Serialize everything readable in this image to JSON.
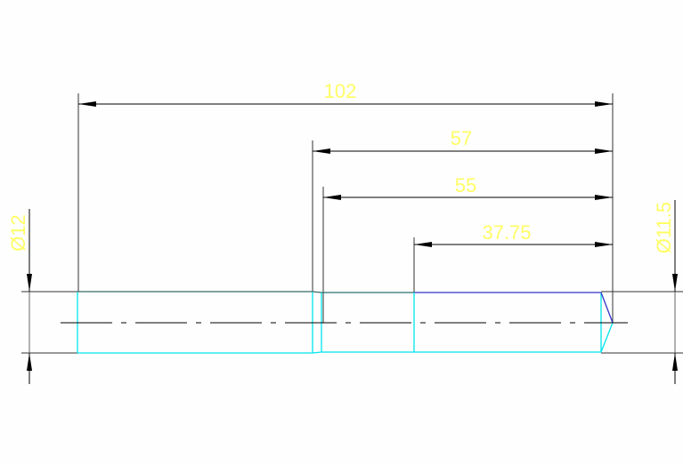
{
  "colors": {
    "dimension_text": "#ffff66",
    "dimension_line": "#000000",
    "outline_visible": "#00e5ee",
    "outline_top": "#3333cc",
    "centerline": "#000000"
  },
  "dimensions": {
    "overall_length": "102",
    "length_57": "57",
    "length_55": "55",
    "length_37_75": "37.75",
    "diameter_left": "Ø12",
    "diameter_right": "Ø11.5"
  }
}
